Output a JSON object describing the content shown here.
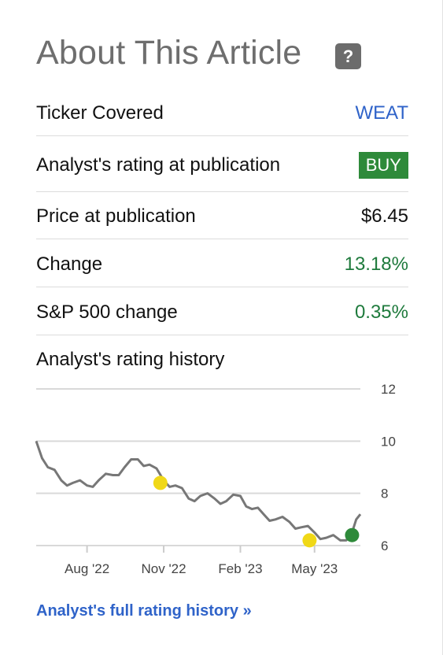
{
  "header": {
    "title": "About This Article",
    "help_label": "?"
  },
  "rows": [
    {
      "label": "Ticker Covered",
      "value": "WEAT"
    },
    {
      "label": "Analyst's rating at publication",
      "value": "BUY"
    },
    {
      "label": "Price at publication",
      "value": "$6.45"
    },
    {
      "label": "Change",
      "value": "13.18%"
    },
    {
      "label": "S&P 500 change",
      "value": "0.35%"
    }
  ],
  "history": {
    "label": "Analyst's rating history"
  },
  "footer": {
    "link_label": "Analyst's full rating history »"
  },
  "colors": {
    "link": "#2f63c9",
    "positive": "#1e7a3c",
    "buy_badge": "#2e8a3a",
    "line": "#777777",
    "hold_marker": "#f0d817",
    "buy_marker": "#2e8a3a"
  },
  "chart_data": {
    "type": "line",
    "y_ticks": [
      "12",
      "10",
      "8",
      "6"
    ],
    "x_ticks": [
      "Aug '22",
      "Nov '22",
      "Feb '23",
      "May '23"
    ],
    "ylim": [
      6,
      12
    ],
    "series": [
      {
        "x": [
          "2022-06-01",
          "2022-06-15",
          "2022-07-01",
          "2022-07-15",
          "2022-08-01",
          "2022-08-15",
          "2022-09-01",
          "2022-09-15",
          "2022-10-01",
          "2022-10-15",
          "2022-11-01",
          "2022-11-15",
          "2022-12-01",
          "2022-12-15",
          "2023-01-01",
          "2023-01-15",
          "2023-02-01",
          "2023-02-15",
          "2023-03-01",
          "2023-03-15",
          "2023-04-01",
          "2023-04-15",
          "2023-05-01",
          "2023-05-15",
          "2023-06-01",
          "2023-06-15",
          "2023-06-25"
        ],
        "y": [
          10.0,
          9.0,
          8.5,
          8.4,
          8.3,
          8.5,
          8.7,
          9.0,
          9.3,
          9.1,
          8.5,
          8.3,
          7.8,
          7.9,
          7.8,
          7.7,
          7.9,
          7.4,
          7.2,
          7.0,
          6.9,
          6.7,
          6.5,
          6.3,
          6.2,
          6.5,
          7.2
        ]
      }
    ],
    "markers": [
      {
        "date": "2022-10-28",
        "value": 8.4,
        "rating": "hold"
      },
      {
        "date": "2023-04-25",
        "value": 6.2,
        "rating": "hold"
      },
      {
        "date": "2023-06-15",
        "value": 6.4,
        "rating": "buy"
      }
    ]
  }
}
